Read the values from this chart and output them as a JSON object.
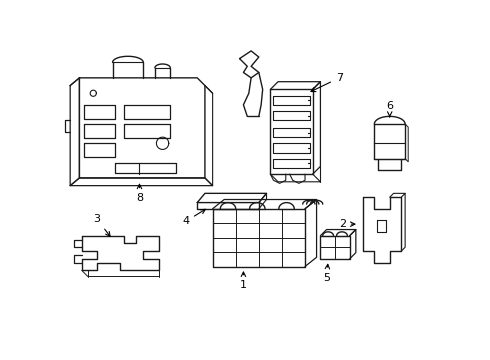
{
  "background_color": "#ffffff",
  "line_color": "#1a1a1a",
  "line_width": 1.0,
  "fig_width": 4.9,
  "fig_height": 3.6,
  "dpi": 100
}
